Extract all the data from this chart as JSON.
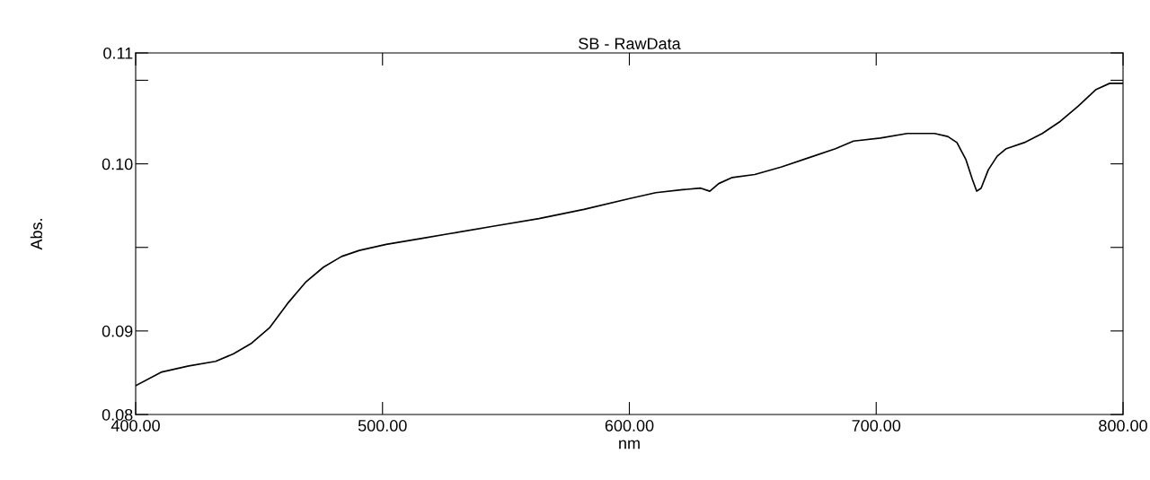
{
  "chart_data": {
    "type": "line",
    "title": "SB - RawData",
    "xlabel": "nm",
    "ylabel": "Abs.",
    "x": [
      400,
      410.6,
      421.5,
      432.4,
      439.7,
      447,
      454.2,
      461.5,
      468.8,
      476.1,
      483.4,
      490.6,
      501.5,
      516.1,
      527,
      545.2,
      563.4,
      581.6,
      599.8,
      610.7,
      621.6,
      628.9,
      632.6,
      636.2,
      641.7,
      650.8,
      661.7,
      672.6,
      683.5,
      690.8,
      701.7,
      712.6,
      723.6,
      729,
      732.7,
      736.3,
      738.9,
      740.7,
      742.5,
      745.4,
      749,
      752.7,
      760,
      767.3,
      774.6,
      781.8,
      789.1,
      794.6,
      800
    ],
    "series": [
      {
        "color": "#000000",
        "values": [
          0.0854,
          0.0863,
          0.0867,
          0.087,
          0.0875,
          0.0882,
          0.0892,
          0.0908,
          0.0922,
          0.0932,
          0.0939,
          0.0943,
          0.0947,
          0.0951,
          0.0954,
          0.0959,
          0.0964,
          0.097,
          0.0977,
          0.0981,
          0.0983,
          0.0984,
          0.0982,
          0.0987,
          0.0991,
          0.0993,
          0.0998,
          0.1004,
          0.101,
          0.1015,
          0.1017,
          0.102,
          0.102,
          0.1018,
          0.1014,
          0.1003,
          0.099,
          0.0982,
          0.0984,
          0.0996,
          0.1005,
          0.101,
          0.1014,
          0.102,
          0.1028,
          0.1038,
          0.1049,
          0.1053,
          0.1053
        ]
      }
    ],
    "xlim": [
      400,
      800
    ],
    "xticks": [
      {
        "value": 400,
        "label": "400.00"
      },
      {
        "value": 500,
        "label": "500.00"
      },
      {
        "value": 600,
        "label": "600.00"
      },
      {
        "value": 700,
        "label": "700.00"
      },
      {
        "value": 800,
        "label": "800.00"
      }
    ],
    "ylim": [
      0.0835,
      0.1073
    ],
    "yticks": [
      {
        "value": 0.0835,
        "label": "0.08"
      },
      {
        "value": 0.089,
        "label": "0.09"
      },
      {
        "value": 0.0945,
        "label": null
      },
      {
        "value": 0.1,
        "label": "0.10"
      },
      {
        "value": 0.1055,
        "label": null
      },
      {
        "value": 0.1073,
        "label": "0.11"
      }
    ],
    "grid": false,
    "legend": false,
    "marker": "none",
    "line_style": "solid"
  }
}
